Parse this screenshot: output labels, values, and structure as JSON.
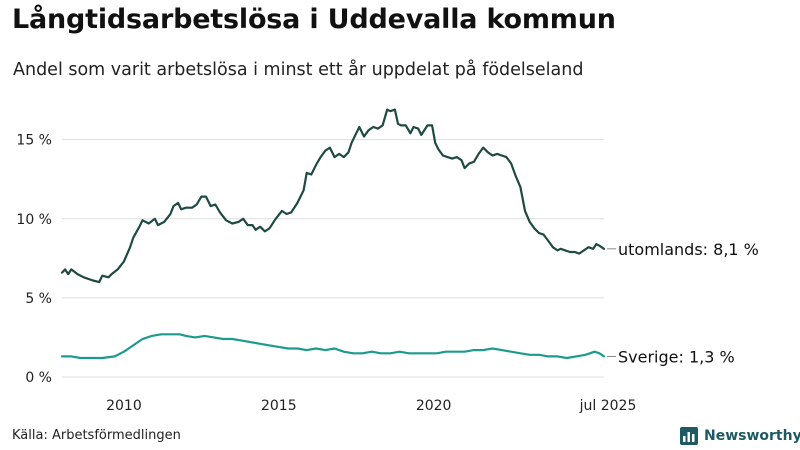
{
  "title": "Långtidsarbetslösa i Uddevalla kommun",
  "subtitle": "Andel som varit arbetslösa i minst ett år uppdelat på födelseland",
  "source": "Källa: Arbetsförmedlingen",
  "brand": {
    "name": "Newsworthy",
    "icon": "newsworthy-logo-icon"
  },
  "colors": {
    "utomlands": "#1f4a42",
    "sverige": "#1c9b8c",
    "grid": "#dddddd",
    "text": "#222222"
  },
  "chart_data": {
    "type": "line",
    "title": "Långtidsarbetslösa i Uddevalla kommun",
    "subtitle": "Andel som varit arbetslösa i minst ett år uppdelat på födelseland",
    "y_ticks": [
      0,
      5,
      10,
      15
    ],
    "y_tick_labels": [
      "0 %",
      "5 %",
      "10 %",
      "15 %"
    ],
    "ylim": [
      0,
      17
    ],
    "x_ticks": [
      2010,
      2015,
      2020,
      2025.5
    ],
    "x_tick_labels": [
      "2010",
      "2015",
      "2020",
      "jul 2025"
    ],
    "xlim": [
      2008.0,
      2025.5
    ],
    "grid": true,
    "series": [
      {
        "name": "utomlands",
        "end_label": "utomlands: 8,1 %",
        "points": [
          [
            2008.0,
            6.6
          ],
          [
            2008.1,
            6.8
          ],
          [
            2008.2,
            6.5
          ],
          [
            2008.3,
            6.8
          ],
          [
            2008.5,
            6.5
          ],
          [
            2008.7,
            6.3
          ],
          [
            2009.0,
            6.1
          ],
          [
            2009.2,
            6.0
          ],
          [
            2009.3,
            6.4
          ],
          [
            2009.5,
            6.3
          ],
          [
            2009.6,
            6.5
          ],
          [
            2009.8,
            6.8
          ],
          [
            2010.0,
            7.3
          ],
          [
            2010.2,
            8.2
          ],
          [
            2010.3,
            8.8
          ],
          [
            2010.5,
            9.5
          ],
          [
            2010.6,
            9.9
          ],
          [
            2010.8,
            9.7
          ],
          [
            2011.0,
            10.0
          ],
          [
            2011.1,
            9.6
          ],
          [
            2011.3,
            9.8
          ],
          [
            2011.5,
            10.3
          ],
          [
            2011.6,
            10.8
          ],
          [
            2011.75,
            11.0
          ],
          [
            2011.85,
            10.6
          ],
          [
            2012.0,
            10.7
          ],
          [
            2012.2,
            10.7
          ],
          [
            2012.35,
            10.9
          ],
          [
            2012.5,
            11.4
          ],
          [
            2012.65,
            11.4
          ],
          [
            2012.8,
            10.8
          ],
          [
            2012.95,
            10.9
          ],
          [
            2013.1,
            10.4
          ],
          [
            2013.3,
            9.9
          ],
          [
            2013.5,
            9.7
          ],
          [
            2013.7,
            9.8
          ],
          [
            2013.85,
            10.0
          ],
          [
            2014.0,
            9.6
          ],
          [
            2014.15,
            9.6
          ],
          [
            2014.25,
            9.3
          ],
          [
            2014.4,
            9.5
          ],
          [
            2014.55,
            9.2
          ],
          [
            2014.7,
            9.4
          ],
          [
            2014.9,
            10.0
          ],
          [
            2015.1,
            10.5
          ],
          [
            2015.25,
            10.3
          ],
          [
            2015.4,
            10.4
          ],
          [
            2015.6,
            11.0
          ],
          [
            2015.8,
            11.8
          ],
          [
            2015.9,
            12.9
          ],
          [
            2016.05,
            12.8
          ],
          [
            2016.2,
            13.4
          ],
          [
            2016.35,
            13.9
          ],
          [
            2016.5,
            14.3
          ],
          [
            2016.65,
            14.5
          ],
          [
            2016.8,
            13.9
          ],
          [
            2016.95,
            14.1
          ],
          [
            2017.1,
            13.9
          ],
          [
            2017.25,
            14.2
          ],
          [
            2017.35,
            14.8
          ],
          [
            2017.5,
            15.4
          ],
          [
            2017.6,
            15.8
          ],
          [
            2017.75,
            15.2
          ],
          [
            2017.9,
            15.6
          ],
          [
            2018.05,
            15.8
          ],
          [
            2018.2,
            15.7
          ],
          [
            2018.35,
            15.9
          ],
          [
            2018.5,
            16.9
          ],
          [
            2018.6,
            16.8
          ],
          [
            2018.75,
            16.9
          ],
          [
            2018.85,
            16.0
          ],
          [
            2018.95,
            15.9
          ],
          [
            2019.1,
            15.9
          ],
          [
            2019.25,
            15.4
          ],
          [
            2019.35,
            15.8
          ],
          [
            2019.5,
            15.7
          ],
          [
            2019.6,
            15.3
          ],
          [
            2019.8,
            15.9
          ],
          [
            2019.95,
            15.9
          ],
          [
            2020.05,
            14.8
          ],
          [
            2020.15,
            14.4
          ],
          [
            2020.3,
            14.0
          ],
          [
            2020.45,
            13.9
          ],
          [
            2020.6,
            13.8
          ],
          [
            2020.75,
            13.9
          ],
          [
            2020.9,
            13.7
          ],
          [
            2021.0,
            13.2
          ],
          [
            2021.15,
            13.5
          ],
          [
            2021.3,
            13.6
          ],
          [
            2021.45,
            14.1
          ],
          [
            2021.6,
            14.5
          ],
          [
            2021.75,
            14.2
          ],
          [
            2021.9,
            14.0
          ],
          [
            2022.05,
            14.1
          ],
          [
            2022.2,
            14.0
          ],
          [
            2022.35,
            13.9
          ],
          [
            2022.5,
            13.5
          ],
          [
            2022.65,
            12.7
          ],
          [
            2022.8,
            12.0
          ],
          [
            2022.95,
            10.5
          ],
          [
            2023.1,
            9.8
          ],
          [
            2023.25,
            9.4
          ],
          [
            2023.4,
            9.1
          ],
          [
            2023.55,
            9.0
          ],
          [
            2023.7,
            8.6
          ],
          [
            2023.85,
            8.2
          ],
          [
            2024.0,
            8.0
          ],
          [
            2024.1,
            8.1
          ],
          [
            2024.25,
            8.0
          ],
          [
            2024.4,
            7.9
          ],
          [
            2024.55,
            7.9
          ],
          [
            2024.7,
            7.8
          ],
          [
            2024.85,
            8.0
          ],
          [
            2025.0,
            8.2
          ],
          [
            2025.15,
            8.1
          ],
          [
            2025.25,
            8.4
          ],
          [
            2025.35,
            8.3
          ],
          [
            2025.5,
            8.1
          ]
        ]
      },
      {
        "name": "Sverige",
        "end_label": "Sverige: 1,3 %",
        "points": [
          [
            2008.0,
            1.3
          ],
          [
            2008.3,
            1.3
          ],
          [
            2008.6,
            1.2
          ],
          [
            2009.0,
            1.2
          ],
          [
            2009.3,
            1.2
          ],
          [
            2009.7,
            1.3
          ],
          [
            2010.0,
            1.6
          ],
          [
            2010.3,
            2.0
          ],
          [
            2010.6,
            2.4
          ],
          [
            2010.9,
            2.6
          ],
          [
            2011.2,
            2.7
          ],
          [
            2011.5,
            2.7
          ],
          [
            2011.8,
            2.7
          ],
          [
            2012.0,
            2.6
          ],
          [
            2012.3,
            2.5
          ],
          [
            2012.6,
            2.6
          ],
          [
            2012.9,
            2.5
          ],
          [
            2013.2,
            2.4
          ],
          [
            2013.5,
            2.4
          ],
          [
            2013.8,
            2.3
          ],
          [
            2014.1,
            2.2
          ],
          [
            2014.4,
            2.1
          ],
          [
            2014.7,
            2.0
          ],
          [
            2015.0,
            1.9
          ],
          [
            2015.3,
            1.8
          ],
          [
            2015.6,
            1.8
          ],
          [
            2015.9,
            1.7
          ],
          [
            2016.2,
            1.8
          ],
          [
            2016.5,
            1.7
          ],
          [
            2016.8,
            1.8
          ],
          [
            2017.1,
            1.6
          ],
          [
            2017.4,
            1.5
          ],
          [
            2017.7,
            1.5
          ],
          [
            2018.0,
            1.6
          ],
          [
            2018.3,
            1.5
          ],
          [
            2018.6,
            1.5
          ],
          [
            2018.9,
            1.6
          ],
          [
            2019.2,
            1.5
          ],
          [
            2019.5,
            1.5
          ],
          [
            2019.8,
            1.5
          ],
          [
            2020.1,
            1.5
          ],
          [
            2020.4,
            1.6
          ],
          [
            2020.7,
            1.6
          ],
          [
            2021.0,
            1.6
          ],
          [
            2021.3,
            1.7
          ],
          [
            2021.6,
            1.7
          ],
          [
            2021.9,
            1.8
          ],
          [
            2022.2,
            1.7
          ],
          [
            2022.5,
            1.6
          ],
          [
            2022.8,
            1.5
          ],
          [
            2023.1,
            1.4
          ],
          [
            2023.4,
            1.4
          ],
          [
            2023.7,
            1.3
          ],
          [
            2024.0,
            1.3
          ],
          [
            2024.3,
            1.2
          ],
          [
            2024.6,
            1.3
          ],
          [
            2024.9,
            1.4
          ],
          [
            2025.2,
            1.6
          ],
          [
            2025.35,
            1.5
          ],
          [
            2025.5,
            1.3
          ]
        ]
      }
    ]
  }
}
